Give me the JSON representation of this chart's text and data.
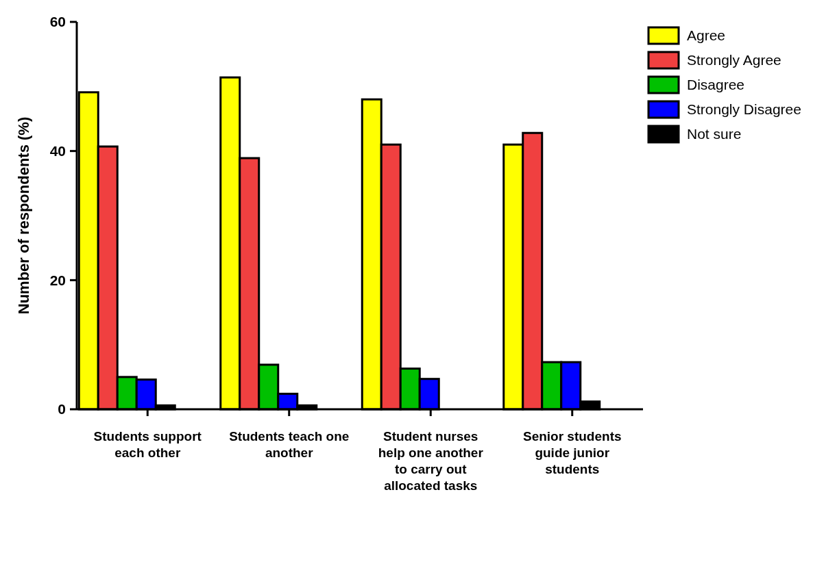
{
  "chart_data": {
    "type": "bar",
    "ylabel": "Number of respondents (%)",
    "categories": [
      "Students support each other",
      "Students teach one another",
      "Student nurses help one another to carry out allocated tasks",
      "Senior students guide junior students"
    ],
    "series": [
      {
        "name": "Agree",
        "color": "#ffff00",
        "values": [
          49.1,
          51.4,
          48.0,
          41.0
        ]
      },
      {
        "name": "Strongly Agree",
        "color": "#f04040",
        "values": [
          40.7,
          38.9,
          41.0,
          42.8
        ]
      },
      {
        "name": "Disagree",
        "color": "#00c000",
        "values": [
          5.0,
          6.9,
          6.3,
          7.3
        ]
      },
      {
        "name": "Strongly Disagree",
        "color": "#0000ff",
        "values": [
          4.6,
          2.4,
          4.7,
          7.3
        ]
      },
      {
        "name": "Not sure",
        "color": "#000000",
        "values": [
          0.6,
          0.6,
          0,
          1.2
        ]
      }
    ],
    "ylim": [
      0,
      60
    ],
    "yticks": [
      0,
      20,
      40,
      60
    ],
    "grid": false,
    "legend": "top right"
  }
}
